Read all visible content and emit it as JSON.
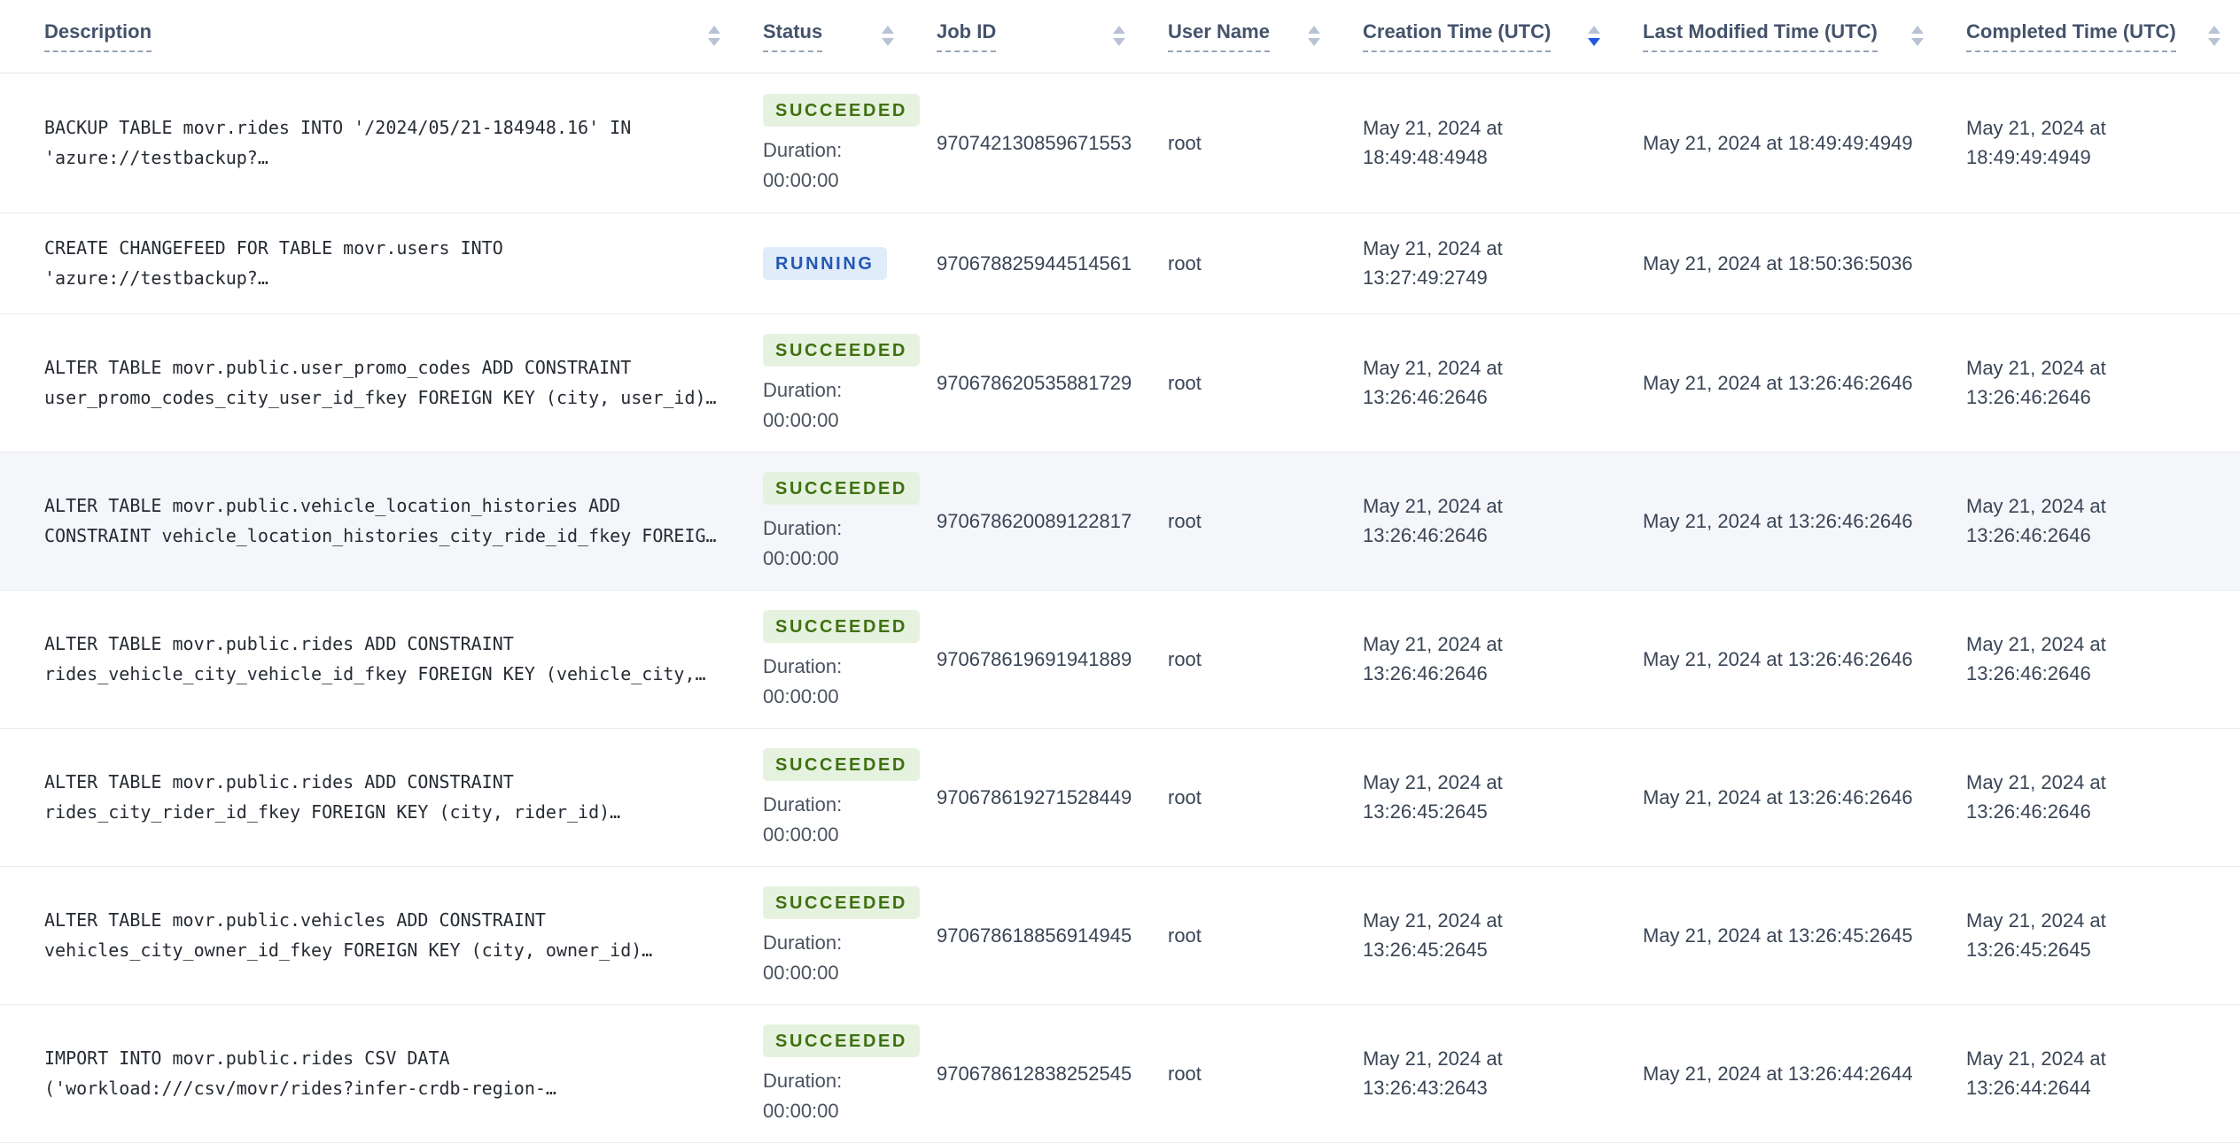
{
  "table": {
    "duration_label": "Duration:",
    "columns": [
      {
        "id": "description",
        "label": "Description",
        "sort": "none"
      },
      {
        "id": "status",
        "label": "Status",
        "sort": "none"
      },
      {
        "id": "job_id",
        "label": "Job ID",
        "sort": "none"
      },
      {
        "id": "user_name",
        "label": "User Name",
        "sort": "none"
      },
      {
        "id": "creation_time",
        "label": "Creation Time (UTC)",
        "sort": "desc"
      },
      {
        "id": "last_modified_time",
        "label": "Last Modified Time (UTC)",
        "sort": "none"
      },
      {
        "id": "completed_time",
        "label": "Completed Time (UTC)",
        "sort": "none"
      }
    ],
    "rows": [
      {
        "description_lines": [
          "BACKUP TABLE movr.rides INTO '/2024/05/21-184948.16' IN",
          "'azure://testbackup?…"
        ],
        "status": "SUCCEEDED",
        "duration": "00:00:00",
        "job_id": "970742130859671553",
        "user_name": "root",
        "creation_time": "May 21, 2024 at 18:49:48:4948",
        "last_modified_time": "May 21, 2024 at 18:49:49:4949",
        "completed_time": "May 21, 2024 at 18:49:49:4949",
        "highlighted": false
      },
      {
        "description_lines": [
          "CREATE CHANGEFEED FOR TABLE movr.users INTO",
          "'azure://testbackup?…"
        ],
        "status": "RUNNING",
        "duration": "",
        "job_id": "970678825944514561",
        "user_name": "root",
        "creation_time": "May 21, 2024 at 13:27:49:2749",
        "last_modified_time": "May 21, 2024 at 18:50:36:5036",
        "completed_time": "",
        "highlighted": false
      },
      {
        "description_lines": [
          "ALTER TABLE movr.public.user_promo_codes ADD CONSTRAINT",
          "user_promo_codes_city_user_id_fkey FOREIGN KEY (city, user_id)…"
        ],
        "status": "SUCCEEDED",
        "duration": "00:00:00",
        "job_id": "970678620535881729",
        "user_name": "root",
        "creation_time": "May 21, 2024 at 13:26:46:2646",
        "last_modified_time": "May 21, 2024 at 13:26:46:2646",
        "completed_time": "May 21, 2024 at 13:26:46:2646",
        "highlighted": false
      },
      {
        "description_lines": [
          "ALTER TABLE movr.public.vehicle_location_histories ADD",
          "CONSTRAINT vehicle_location_histories_city_ride_id_fkey FOREIG…"
        ],
        "status": "SUCCEEDED",
        "duration": "00:00:00",
        "job_id": "970678620089122817",
        "user_name": "root",
        "creation_time": "May 21, 2024 at 13:26:46:2646",
        "last_modified_time": "May 21, 2024 at 13:26:46:2646",
        "completed_time": "May 21, 2024 at 13:26:46:2646",
        "highlighted": true
      },
      {
        "description_lines": [
          "ALTER TABLE movr.public.rides ADD CONSTRAINT",
          "rides_vehicle_city_vehicle_id_fkey FOREIGN KEY (vehicle_city,…"
        ],
        "status": "SUCCEEDED",
        "duration": "00:00:00",
        "job_id": "970678619691941889",
        "user_name": "root",
        "creation_time": "May 21, 2024 at 13:26:46:2646",
        "last_modified_time": "May 21, 2024 at 13:26:46:2646",
        "completed_time": "May 21, 2024 at 13:26:46:2646",
        "highlighted": false
      },
      {
        "description_lines": [
          "ALTER TABLE movr.public.rides ADD CONSTRAINT",
          "rides_city_rider_id_fkey FOREIGN KEY (city, rider_id)…"
        ],
        "status": "SUCCEEDED",
        "duration": "00:00:00",
        "job_id": "970678619271528449",
        "user_name": "root",
        "creation_time": "May 21, 2024 at 13:26:45:2645",
        "last_modified_time": "May 21, 2024 at 13:26:46:2646",
        "completed_time": "May 21, 2024 at 13:26:46:2646",
        "highlighted": false
      },
      {
        "description_lines": [
          "ALTER TABLE movr.public.vehicles ADD CONSTRAINT",
          "vehicles_city_owner_id_fkey FOREIGN KEY (city, owner_id)…"
        ],
        "status": "SUCCEEDED",
        "duration": "00:00:00",
        "job_id": "970678618856914945",
        "user_name": "root",
        "creation_time": "May 21, 2024 at 13:26:45:2645",
        "last_modified_time": "May 21, 2024 at 13:26:45:2645",
        "completed_time": "May 21, 2024 at 13:26:45:2645",
        "highlighted": false
      },
      {
        "description_lines": [
          "IMPORT INTO movr.public.rides CSV DATA",
          "('workload:///csv/movr/rides?infer-crdb-region-…"
        ],
        "status": "SUCCEEDED",
        "duration": "00:00:00",
        "job_id": "970678612838252545",
        "user_name": "root",
        "creation_time": "May 21, 2024 at 13:26:43:2643",
        "last_modified_time": "May 21, 2024 at 13:26:44:2644",
        "completed_time": "May 21, 2024 at 13:26:44:2644",
        "highlighted": false
      }
    ]
  },
  "colors": {
    "succeeded_bg": "#e6f2e0",
    "succeeded_text": "#3f7110",
    "running_bg": "#e1ecfa",
    "running_text": "#2458b3",
    "sort_active": "#2457e0",
    "sort_inactive": "#b9c2d4",
    "highlight_row_bg": "#f4f6fa"
  }
}
